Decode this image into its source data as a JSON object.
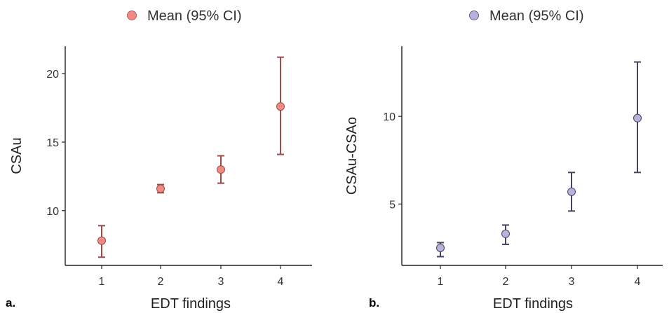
{
  "panels": [
    {
      "tag": "a.",
      "legend_label": "Mean (95% CI)",
      "point_color": "#f08a82",
      "line_color": "#9c4a45",
      "chart_data": {
        "type": "scatter",
        "title": "",
        "xlabel": "EDT findings",
        "ylabel": "CSAu",
        "categories": [
          "1",
          "2",
          "3",
          "4"
        ],
        "ylim": [
          6.0,
          22.0
        ],
        "yticks": [
          10,
          15,
          20
        ],
        "series": [
          {
            "name": "Mean (95% CI)",
            "mean": [
              7.8,
              11.6,
              13.0,
              17.6
            ],
            "ci_low": [
              6.6,
              11.3,
              12.0,
              14.1
            ],
            "ci_high": [
              8.9,
              11.9,
              14.0,
              21.2
            ]
          }
        ],
        "grid": false,
        "legend": "top-center"
      }
    },
    {
      "tag": "b.",
      "legend_label": "Mean (95% CI)",
      "point_color": "#b9b0dc",
      "line_color": "#4a4060",
      "chart_data": {
        "type": "scatter",
        "title": "",
        "xlabel": "EDT findings",
        "ylabel": "CSAu-CSAo",
        "categories": [
          "1",
          "2",
          "3",
          "4"
        ],
        "ylim": [
          1.5,
          14.0
        ],
        "yticks": [
          5,
          10
        ],
        "series": [
          {
            "name": "Mean (95% CI)",
            "mean": [
              2.5,
              3.3,
              5.7,
              9.9
            ],
            "ci_low": [
              2.0,
              2.7,
              4.6,
              6.8
            ],
            "ci_high": [
              2.8,
              3.8,
              6.8,
              13.1
            ]
          }
        ],
        "grid": false,
        "legend": "top-center"
      }
    }
  ]
}
